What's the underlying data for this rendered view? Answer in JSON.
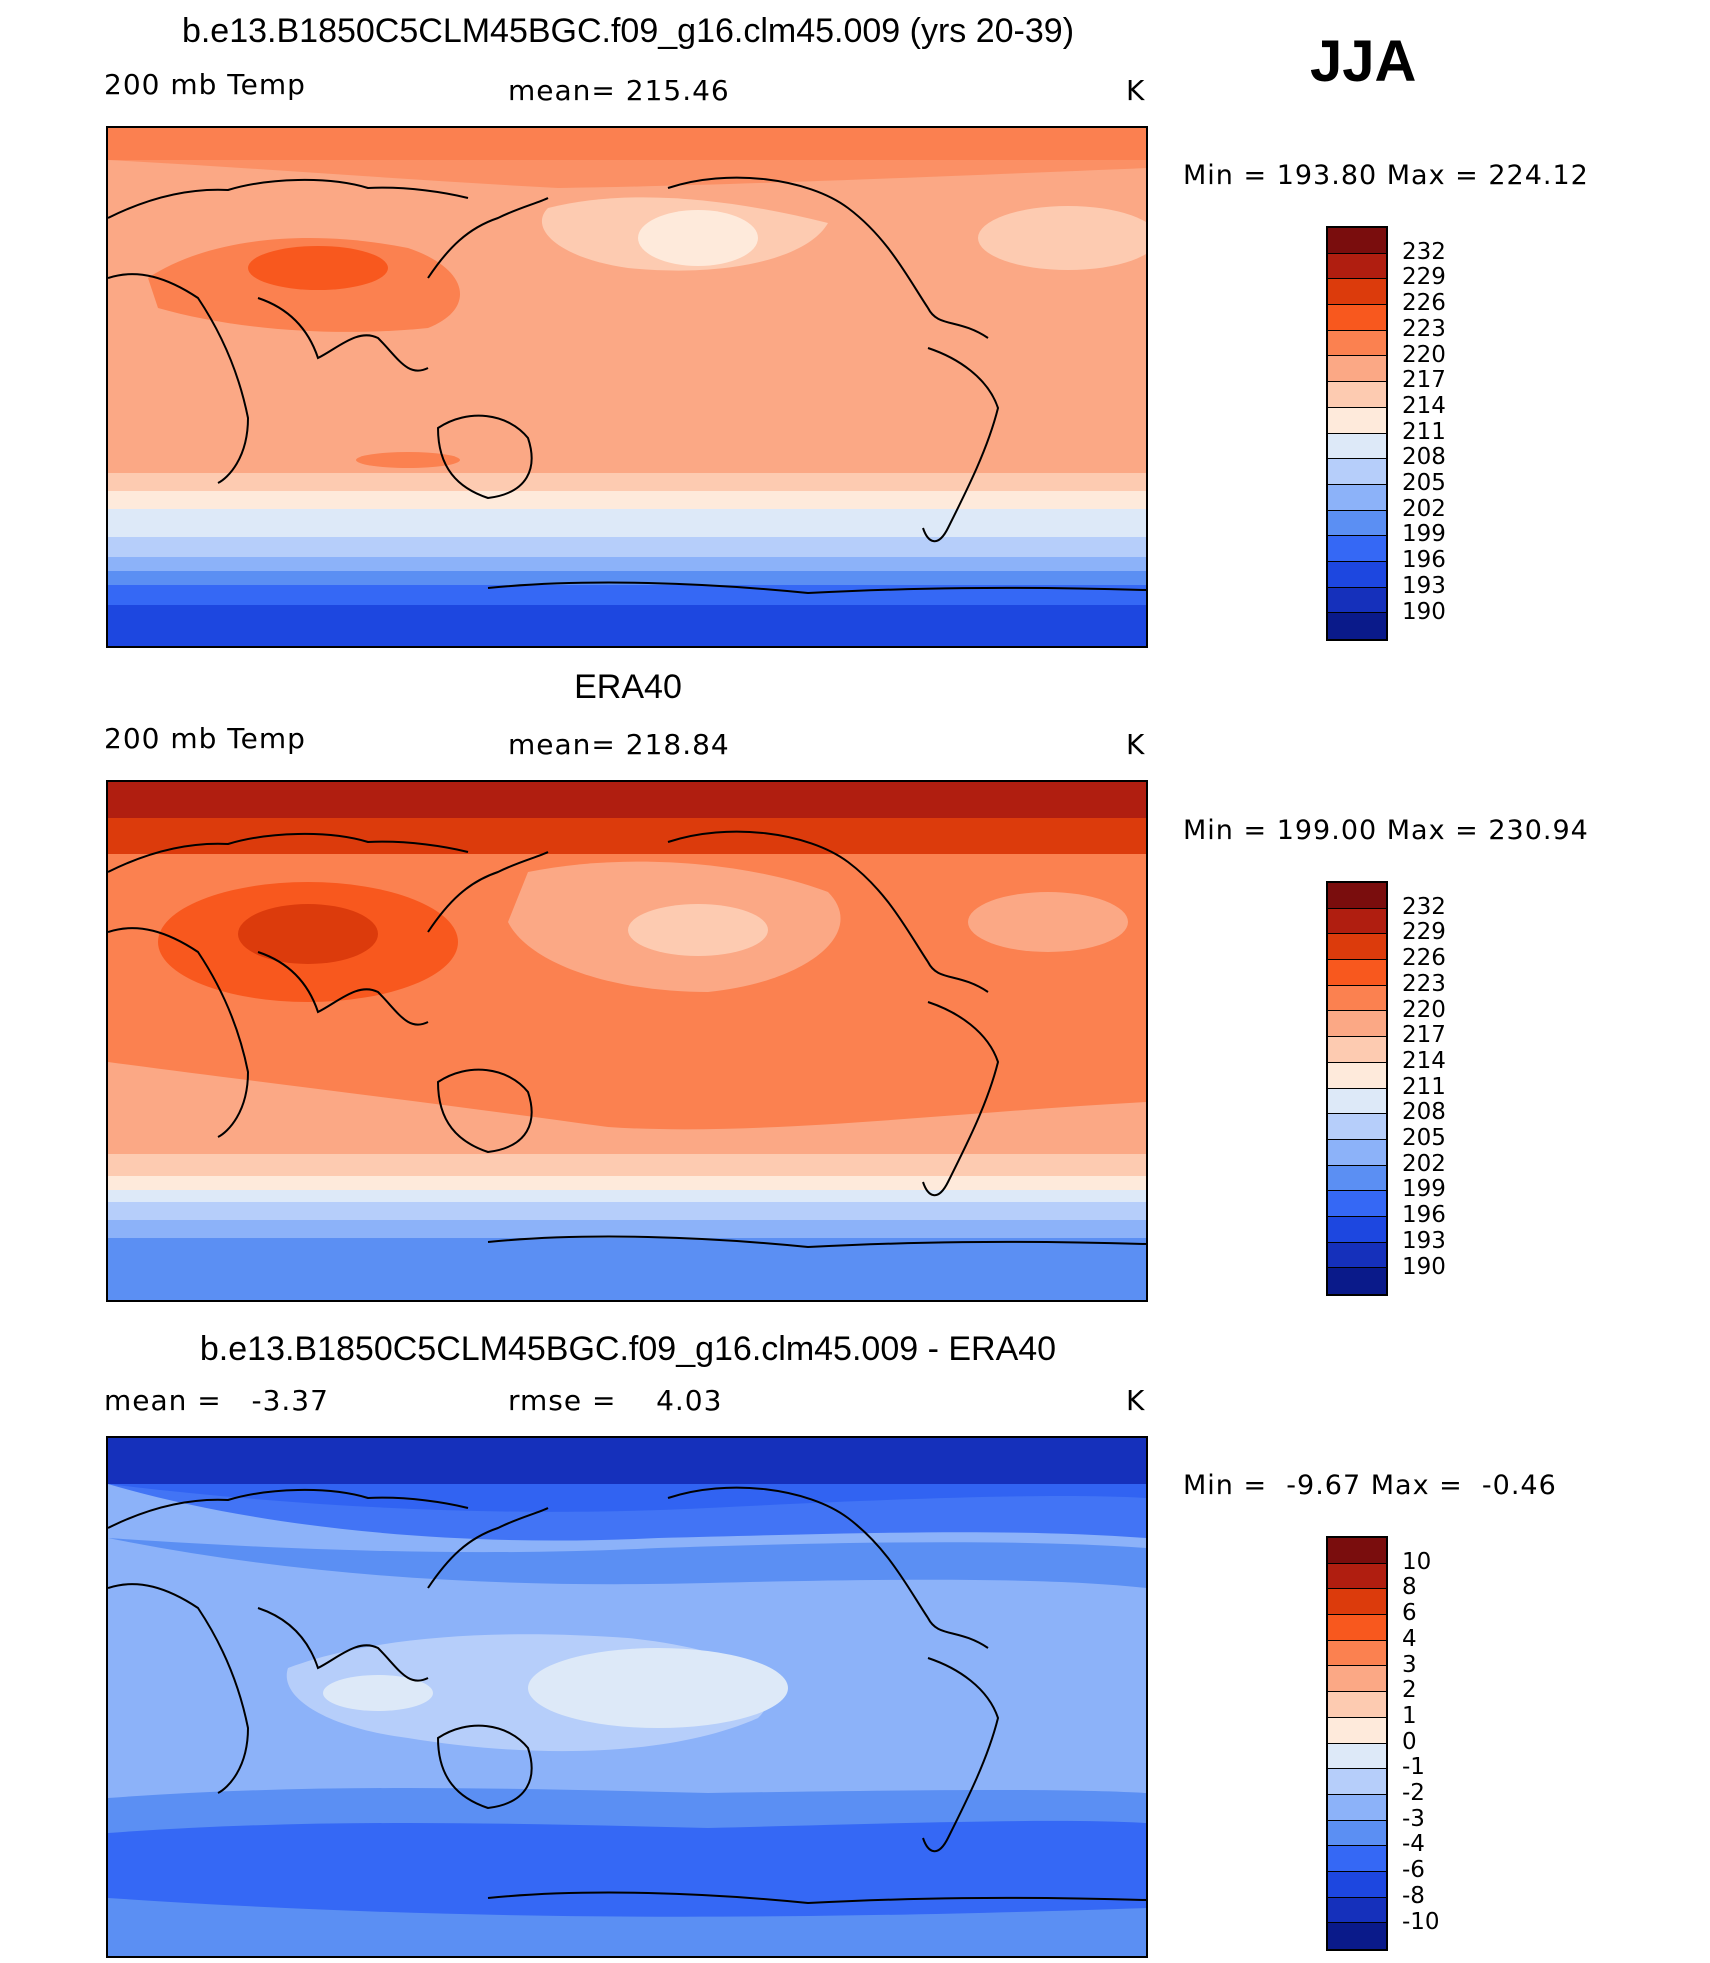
{
  "season": "JJA",
  "panels": [
    {
      "title": "b.e13.B1850C5CLM45BGC.f09_g16.clm45.009 (yrs 20-39)",
      "left": "200 mb Temp",
      "center": "mean= 215.46",
      "units": "K",
      "minmax": "Min = 193.80 Max = 224.12",
      "field": "model",
      "colorbar_labels": [
        "232",
        "229",
        "226",
        "223",
        "220",
        "217",
        "214",
        "211",
        "208",
        "205",
        "202",
        "199",
        "196",
        "193",
        "190"
      ],
      "colors": [
        "#7a0d0d",
        "#b01e10",
        "#dc3b0c",
        "#f8581e",
        "#fb8150",
        "#fba885",
        "#fdcbb1",
        "#feeadb",
        "#dde9f8",
        "#b6cefa",
        "#8cb2f9",
        "#5b8ff3",
        "#3568f5",
        "#1d47e0",
        "#1530bb",
        "#0a1a8a"
      ]
    },
    {
      "title": "ERA40",
      "left": "200 mb Temp",
      "center": "mean= 218.84",
      "units": "K",
      "minmax": "Min = 199.00 Max = 230.94",
      "field": "obs",
      "colorbar_labels": [
        "232",
        "229",
        "226",
        "223",
        "220",
        "217",
        "214",
        "211",
        "208",
        "205",
        "202",
        "199",
        "196",
        "193",
        "190"
      ],
      "colors": [
        "#7a0d0d",
        "#b01e10",
        "#dc3b0c",
        "#f8581e",
        "#fb8150",
        "#fba885",
        "#fdcbb1",
        "#feeadb",
        "#dde9f8",
        "#b6cefa",
        "#8cb2f9",
        "#5b8ff3",
        "#3568f5",
        "#1d47e0",
        "#1530bb",
        "#0a1a8a"
      ]
    },
    {
      "title": "b.e13.B1850C5CLM45BGC.f09_g16.clm45.009 - ERA40",
      "left": "mean =   -3.37",
      "center": "rmse =    4.03",
      "units": "K",
      "minmax": "Min =  -9.67 Max =  -0.46",
      "field": "diff",
      "colorbar_labels": [
        "10",
        "8",
        "6",
        "4",
        "3",
        "2",
        "1",
        "0",
        "-1",
        "-2",
        "-3",
        "-4",
        "-6",
        "-8",
        "-10"
      ],
      "colors": [
        "#7a0d0d",
        "#b01e10",
        "#dc3b0c",
        "#f8581e",
        "#fb8150",
        "#fba885",
        "#fdcbb1",
        "#feeadb",
        "#dde9f8",
        "#b6cefa",
        "#8cb2f9",
        "#5b8ff3",
        "#3568f5",
        "#1d47e0",
        "#1530bb",
        "#0a1a8a"
      ]
    }
  ]
}
